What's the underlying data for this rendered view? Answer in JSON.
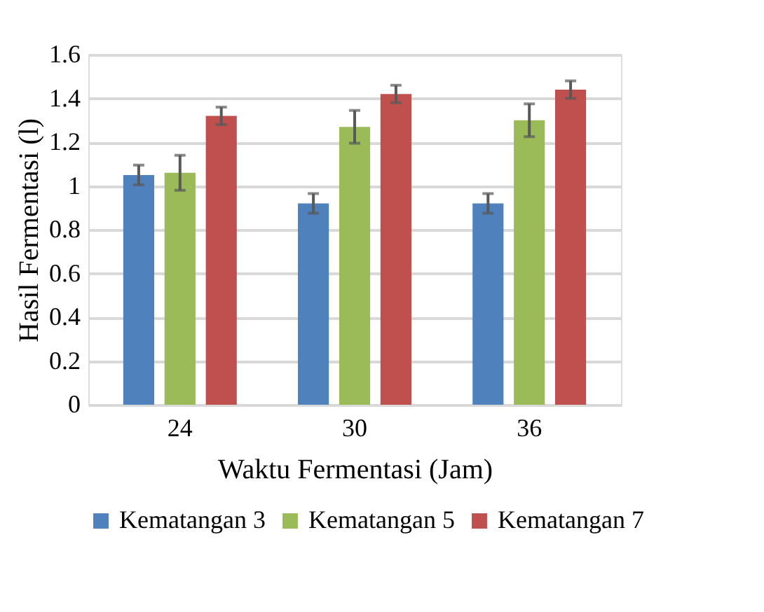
{
  "chart_data": {
    "type": "bar",
    "xlabel": "Waktu Fermentasi (Jam)",
    "ylabel": "Hasil Fermentasi (l)",
    "categories": [
      "24",
      "30",
      "36"
    ],
    "series": [
      {
        "name": "Kematangan 3",
        "color": "#4f81bd",
        "values": [
          1.05,
          0.92,
          0.92
        ],
        "errors": [
          0.045,
          0.045,
          0.045
        ]
      },
      {
        "name": "Kematangan 5",
        "color": "#9bbb59",
        "values": [
          1.06,
          1.27,
          1.3
        ],
        "errors": [
          0.08,
          0.075,
          0.075
        ]
      },
      {
        "name": "Kematangan 7",
        "color": "#c0504d",
        "values": [
          1.32,
          1.42,
          1.44
        ],
        "errors": [
          0.04,
          0.04,
          0.04
        ]
      }
    ],
    "ylim": [
      0,
      1.6
    ],
    "yticks": [
      0,
      0.2,
      0.4,
      0.6,
      0.8,
      1,
      1.2,
      1.4,
      1.6
    ],
    "grid": "y",
    "legend": "bottom"
  }
}
